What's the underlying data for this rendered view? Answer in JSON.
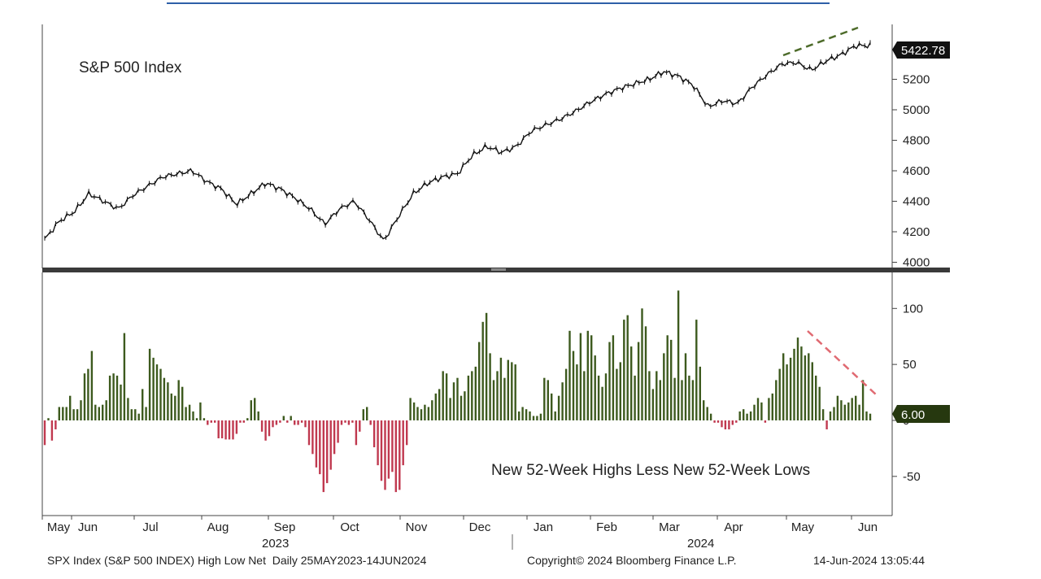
{
  "chart_data": [
    {
      "type": "line",
      "panel": "top",
      "title": "S&P 500 Index",
      "ylim": [
        3960,
        5560
      ],
      "yticks": [
        4000,
        4200,
        4400,
        4600,
        4800,
        5000,
        5200
      ],
      "last_value_label": "5422.78",
      "trend_annotation": "green dashed line above recent highs (rising)",
      "series": [
        {
          "name": "S&P 500 Index",
          "x": [
            0,
            5,
            10,
            15,
            20,
            25,
            30,
            35,
            40,
            50,
            55,
            60,
            65,
            70,
            75,
            80,
            85,
            90,
            95,
            100,
            105,
            110,
            115,
            120,
            125,
            130,
            135,
            140,
            145,
            150,
            155,
            160,
            165,
            170,
            175,
            180,
            185,
            190,
            195,
            200,
            205,
            210,
            215,
            220,
            225,
            230,
            235,
            240,
            245,
            250,
            255,
            260,
            265,
            270,
            275,
            280
          ],
          "values": [
            4150,
            4270,
            4330,
            4450,
            4400,
            4350,
            4440,
            4500,
            4560,
            4600,
            4530,
            4480,
            4380,
            4450,
            4520,
            4480,
            4420,
            4350,
            4250,
            4350,
            4400,
            4280,
            4140,
            4300,
            4450,
            4520,
            4560,
            4580,
            4700,
            4760,
            4720,
            4760,
            4860,
            4900,
            4940,
            4990,
            5050,
            5100,
            5140,
            5170,
            5200,
            5250,
            5220,
            5160,
            5020,
            5060,
            5040,
            5150,
            5230,
            5300,
            5310,
            5260,
            5320,
            5360,
            5420,
            5422
          ]
        }
      ]
    },
    {
      "type": "bar",
      "panel": "bottom",
      "title": "New 52-Week Highs Less New 52-Week Lows",
      "ylim": [
        -85,
        130
      ],
      "yticks": [
        -50,
        0,
        50,
        100
      ],
      "last_value_label": "6.00",
      "trend_annotation": "red dashed declining line over recent peaks",
      "series": [
        {
          "name": "New 52-Week Highs Less New 52-Week Lows",
          "values": [
            -22,
            2,
            -18,
            -8,
            12,
            12,
            12,
            22,
            10,
            10,
            18,
            42,
            46,
            62,
            14,
            12,
            14,
            18,
            40,
            42,
            40,
            32,
            78,
            20,
            10,
            10,
            6,
            28,
            12,
            64,
            56,
            50,
            46,
            38,
            34,
            24,
            22,
            36,
            30,
            12,
            14,
            8,
            2,
            16,
            2,
            -4,
            -2,
            -2,
            -16,
            -16,
            -17,
            -17,
            -17,
            -12,
            -2,
            -2,
            2,
            18,
            20,
            8,
            -10,
            -18,
            -14,
            -6,
            -4,
            -2,
            4,
            -2,
            4,
            -4,
            -4,
            -2,
            -6,
            -22,
            -30,
            -42,
            -48,
            -64,
            -56,
            -44,
            -30,
            -20,
            -4,
            -2,
            -4,
            -2,
            -22,
            -10,
            10,
            12,
            -4,
            -24,
            -40,
            -54,
            -62,
            -52,
            -46,
            -64,
            -62,
            -40,
            -22,
            20,
            16,
            12,
            10,
            14,
            12,
            18,
            24,
            28,
            44,
            42,
            20,
            34,
            38,
            22,
            26,
            40,
            44,
            48,
            70,
            88,
            96,
            60,
            36,
            44,
            56,
            38,
            54,
            52,
            50,
            8,
            12,
            10,
            8,
            4,
            4,
            6,
            38,
            36,
            24,
            8,
            22,
            34,
            46,
            80,
            62,
            50,
            78,
            44,
            80,
            76,
            58,
            40,
            30,
            42,
            70,
            76,
            46,
            52,
            90,
            94,
            66,
            40,
            70,
            100,
            84,
            44,
            28,
            44,
            36,
            60,
            76,
            72,
            38,
            116,
            36,
            60,
            40,
            36,
            90,
            48,
            18,
            12,
            6,
            -2,
            -2,
            -6,
            -8,
            -8,
            -4,
            -2,
            8,
            10,
            6,
            8,
            14,
            20,
            16,
            -2,
            20,
            24,
            36,
            46,
            60,
            50,
            56,
            64,
            74,
            66,
            58,
            60,
            52,
            40,
            30,
            10,
            -8,
            8,
            12,
            22,
            18,
            14,
            16,
            20,
            22,
            14,
            36,
            8,
            6
          ]
        }
      ]
    }
  ],
  "x_axis": {
    "month_labels": [
      "May",
      "Jun",
      "Jul",
      "Aug",
      "Sep",
      "Oct",
      "Nov",
      "Dec",
      "Jan",
      "Feb",
      "Mar",
      "Apr",
      "May",
      "Jun"
    ],
    "year_labels": [
      "2023",
      "2024"
    ]
  },
  "footer": {
    "left": "SPX Index (S&P 500 INDEX) High Low Net  Daily 25MAY2023-14JUN2024",
    "middle": "Copyright© 2024 Bloomberg Finance L.P.",
    "right": "14-Jun-2024 13:05:44"
  },
  "colors": {
    "price_line": "#111111",
    "positive_bar": "#3d5a1e",
    "negative_bar": "#c0394f",
    "separator": "#3a3a3a",
    "green_tag_bg": "#26380f",
    "dark_tag_bg": "#111111",
    "green_dash": "#4d6b2a",
    "red_dash": "#e06a72",
    "header_line": "#2e5fa8"
  }
}
